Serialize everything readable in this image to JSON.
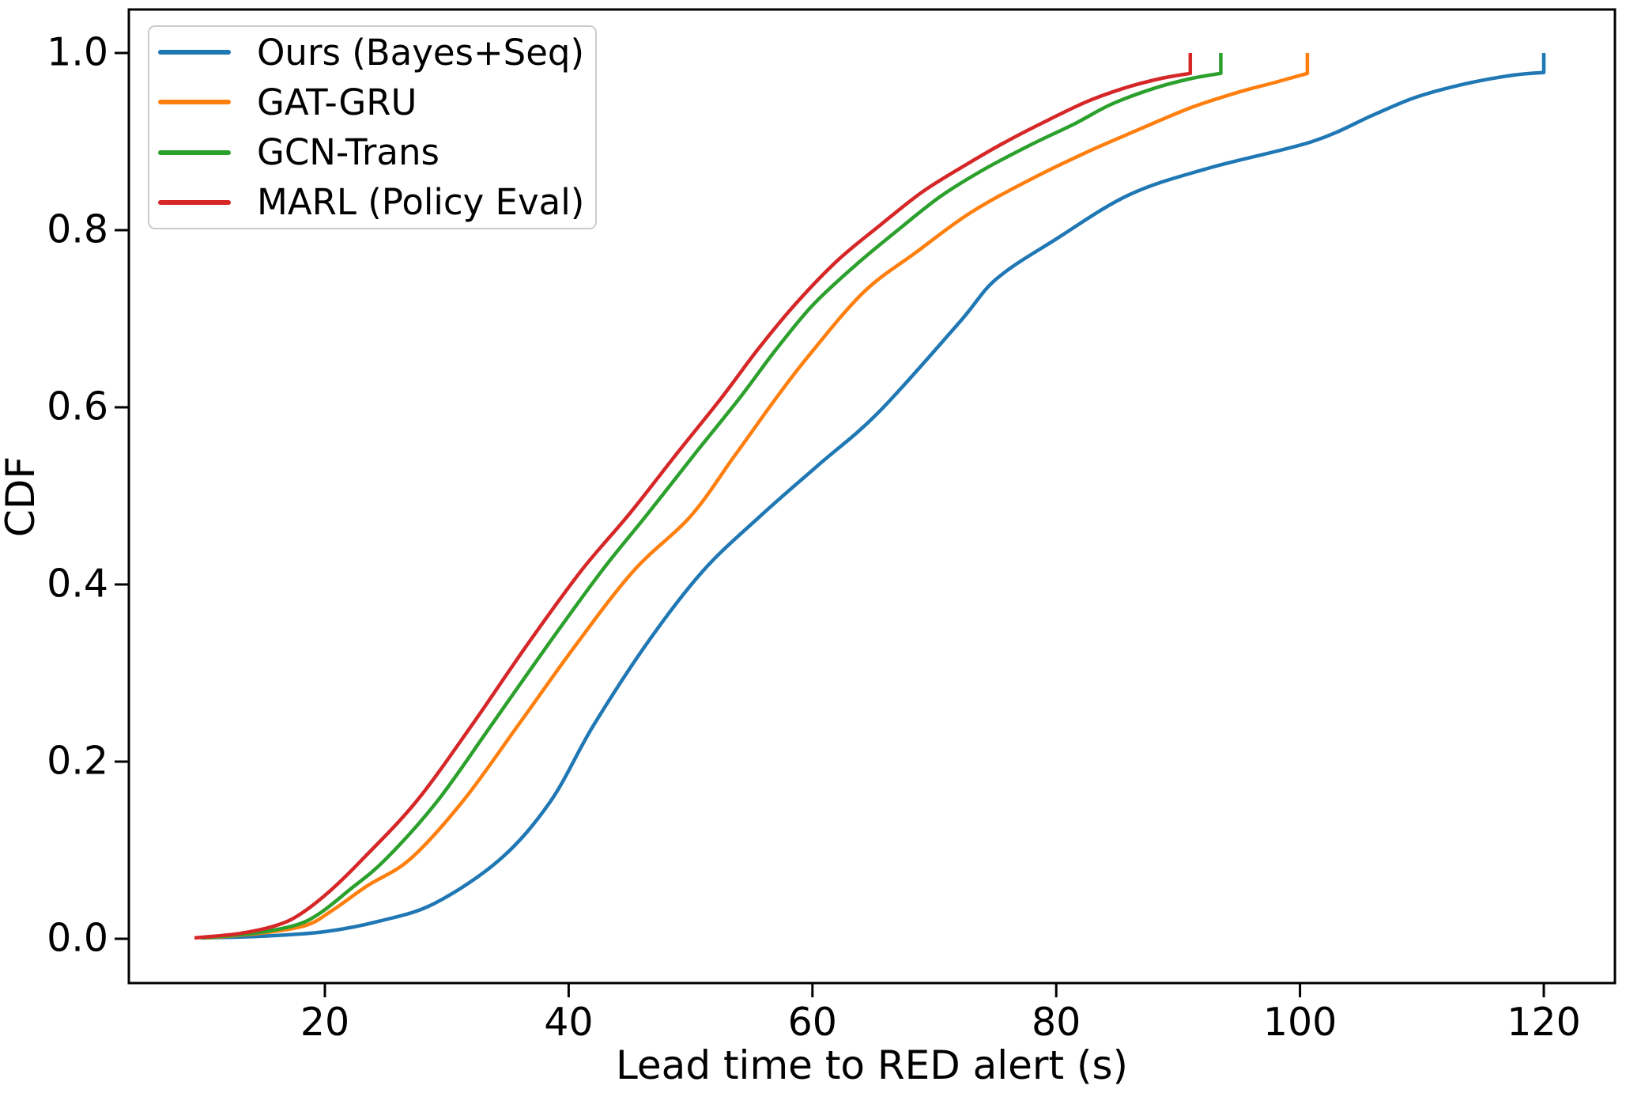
{
  "chart_data": {
    "type": "line",
    "subtype": "empirical-cdf",
    "title": "",
    "xlabel": "Lead time to RED alert (s)",
    "ylabel": "CDF",
    "xlim": [
      3.9,
      125.9
    ],
    "ylim": [
      -0.05,
      1.05
    ],
    "xticks": [
      "20",
      "40",
      "60",
      "80",
      "100",
      "120"
    ],
    "yticks": [
      "0.0",
      "0.2",
      "0.4",
      "0.6",
      "0.8",
      "1.0"
    ],
    "grid": false,
    "legend_position": "upper left",
    "axis_color": "#000000",
    "background_color": "#ffffff",
    "legend_border_color": "#cccccc",
    "series": [
      {
        "name": "Ours (Bayes+Seq)",
        "key": "ours-bayes-seq",
        "color": "#1f77b4",
        "end_jump": {
          "x": 120,
          "from_cdf": 0.978,
          "to_cdf": 1.0
        },
        "cdf_points": [
          [
            10,
            0.001
          ],
          [
            15,
            0.003
          ],
          [
            20,
            0.008
          ],
          [
            24.5,
            0.02
          ],
          [
            29,
            0.04
          ],
          [
            34.4,
            0.09
          ],
          [
            38.5,
            0.155
          ],
          [
            42,
            0.24
          ],
          [
            46.5,
            0.335
          ],
          [
            51,
            0.415
          ],
          [
            55.7,
            0.477
          ],
          [
            60.5,
            0.535
          ],
          [
            65.4,
            0.594
          ],
          [
            72,
            0.695
          ],
          [
            75.1,
            0.745
          ],
          [
            80,
            0.79
          ],
          [
            86,
            0.84
          ],
          [
            92.5,
            0.87
          ],
          [
            101,
            0.9
          ],
          [
            106,
            0.93
          ],
          [
            109.5,
            0.95
          ],
          [
            113.5,
            0.965
          ],
          [
            117.5,
            0.975
          ],
          [
            120,
            0.978
          ]
        ]
      },
      {
        "name": "GAT-GRU",
        "key": "gat-gru",
        "color": "#ff7f0e",
        "end_jump": {
          "x": 100.6,
          "from_cdf": 0.977,
          "to_cdf": 1.0
        },
        "cdf_points": [
          [
            10.2,
            0.001
          ],
          [
            14.5,
            0.006
          ],
          [
            18.4,
            0.015
          ],
          [
            20.6,
            0.032
          ],
          [
            23.5,
            0.06
          ],
          [
            27,
            0.09
          ],
          [
            31.3,
            0.155
          ],
          [
            35.8,
            0.24
          ],
          [
            40.5,
            0.33
          ],
          [
            45.3,
            0.415
          ],
          [
            50,
            0.477
          ],
          [
            53.6,
            0.545
          ],
          [
            57,
            0.61
          ],
          [
            59.8,
            0.66
          ],
          [
            64.2,
            0.73
          ],
          [
            68.5,
            0.775
          ],
          [
            73,
            0.82
          ],
          [
            78,
            0.858
          ],
          [
            82.5,
            0.888
          ],
          [
            86.5,
            0.912
          ],
          [
            91,
            0.938
          ],
          [
            95,
            0.956
          ],
          [
            98,
            0.967
          ],
          [
            100.6,
            0.977
          ]
        ]
      },
      {
        "name": "GCN-Trans",
        "key": "gcn-trans",
        "color": "#2ca02c",
        "end_jump": {
          "x": 93.5,
          "from_cdf": 0.977,
          "to_cdf": 1.0
        },
        "cdf_points": [
          [
            9.8,
            0.001
          ],
          [
            14,
            0.006
          ],
          [
            17.5,
            0.015
          ],
          [
            19.5,
            0.028
          ],
          [
            22,
            0.055
          ],
          [
            25,
            0.09
          ],
          [
            29.2,
            0.155
          ],
          [
            33.6,
            0.24
          ],
          [
            38.2,
            0.33
          ],
          [
            42.7,
            0.415
          ],
          [
            46.5,
            0.48
          ],
          [
            50.5,
            0.55
          ],
          [
            54,
            0.61
          ],
          [
            57,
            0.665
          ],
          [
            60,
            0.715
          ],
          [
            63.5,
            0.76
          ],
          [
            67,
            0.8
          ],
          [
            70.5,
            0.838
          ],
          [
            74,
            0.868
          ],
          [
            78,
            0.897
          ],
          [
            81.5,
            0.92
          ],
          [
            84.5,
            0.942
          ],
          [
            88,
            0.96
          ],
          [
            91,
            0.971
          ],
          [
            93.5,
            0.977
          ]
        ]
      },
      {
        "name": "MARL (Policy Eval)",
        "key": "marl-policy-eval",
        "color": "#d62728",
        "end_jump": {
          "x": 91,
          "from_cdf": 0.977,
          "to_cdf": 1.0
        },
        "cdf_points": [
          [
            9.3,
            0.001
          ],
          [
            13,
            0.006
          ],
          [
            16,
            0.015
          ],
          [
            18,
            0.028
          ],
          [
            20.5,
            0.055
          ],
          [
            23.1,
            0.09
          ],
          [
            27.5,
            0.155
          ],
          [
            32,
            0.24
          ],
          [
            36.5,
            0.33
          ],
          [
            41,
            0.415
          ],
          [
            45,
            0.48
          ],
          [
            49,
            0.55
          ],
          [
            52.5,
            0.61
          ],
          [
            55.5,
            0.665
          ],
          [
            58.5,
            0.715
          ],
          [
            62,
            0.765
          ],
          [
            65.5,
            0.805
          ],
          [
            69,
            0.843
          ],
          [
            72.5,
            0.873
          ],
          [
            75.5,
            0.897
          ],
          [
            79,
            0.922
          ],
          [
            82.5,
            0.945
          ],
          [
            85.5,
            0.96
          ],
          [
            88.5,
            0.971
          ],
          [
            91,
            0.977
          ]
        ]
      }
    ]
  }
}
